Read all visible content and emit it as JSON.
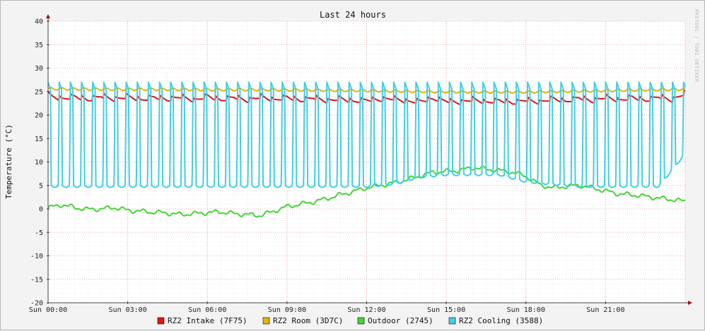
{
  "chart_data": {
    "type": "line",
    "title": "Last 24 hours",
    "ylabel": "Temperature (°C)",
    "watermark": "RRDTOOL / TOBI OETIKER",
    "x_range_hours": [
      0,
      24
    ],
    "ylim": [
      -20,
      40
    ],
    "y_ticks": [
      40,
      35,
      30,
      25,
      20,
      15,
      10,
      5,
      0,
      -5,
      -10,
      -15,
      -20
    ],
    "x_ticks": [
      {
        "hour": 0,
        "label": "Sun 00:00"
      },
      {
        "hour": 3,
        "label": "Sun 03:00"
      },
      {
        "hour": 6,
        "label": "Sun 06:00"
      },
      {
        "hour": 9,
        "label": "Sun 09:00"
      },
      {
        "hour": 12,
        "label": "Sun 12:00"
      },
      {
        "hour": 15,
        "label": "Sun 15:00"
      },
      {
        "hour": 18,
        "label": "Sun 18:00"
      },
      {
        "hour": 21,
        "label": "Sun 21:00"
      }
    ],
    "grid": true,
    "legend_position": "bottom",
    "series": [
      {
        "name": "RZ2 Intake (7F75)",
        "color": "#e8120f",
        "x": [
          0,
          0.5,
          1,
          1.5,
          2,
          2.5,
          3,
          3.5,
          4,
          4.5,
          5,
          5.5,
          6,
          6.5,
          7,
          7.5,
          8,
          8.5,
          9,
          9.5,
          10,
          10.5,
          11,
          11.5,
          12,
          12.5,
          13,
          13.5,
          14,
          14.5,
          15,
          15.5,
          16,
          16.5,
          17,
          17.5,
          18,
          18.5,
          19,
          19.5,
          20,
          20.5,
          21,
          21.5,
          22,
          22.5,
          23,
          23.5,
          24
        ],
        "y": [
          24.5,
          23.5,
          24.2,
          23.3,
          24.3,
          23.4,
          24.2,
          23.3,
          24.1,
          23.4,
          24.2,
          23.2,
          24.3,
          23.3,
          24.1,
          23.2,
          24.2,
          23.3,
          24.1,
          23.2,
          24.0,
          23.1,
          23.8,
          23.0,
          23.5,
          23.4,
          23.8,
          23.0,
          23.2,
          23.6,
          23.3,
          22.8,
          23.6,
          22.8,
          23.4,
          22.7,
          23.5,
          22.8,
          23.8,
          23.0,
          24.0,
          23.1,
          24.1,
          23.2,
          24.1,
          23.2,
          24.2,
          23.3,
          25.0
        ]
      },
      {
        "name": "RZ2 Room (3D7C)",
        "color": "#e8b20c",
        "x": [
          0,
          2,
          4,
          6,
          8,
          10,
          12,
          14,
          16,
          18,
          20,
          22,
          24
        ],
        "y": [
          25.6,
          25.5,
          25.5,
          25.4,
          25.4,
          25.3,
          25.2,
          25.0,
          24.9,
          24.9,
          25.1,
          25.3,
          25.5
        ]
      },
      {
        "name": "Outdoor (2745)",
        "color": "#43d632",
        "x": [
          0,
          0.5,
          1,
          1.5,
          2,
          2.5,
          3,
          3.5,
          4,
          4.5,
          5,
          5.5,
          6,
          6.5,
          7,
          7.5,
          8,
          8.5,
          9,
          9.5,
          10,
          10.5,
          11,
          11.5,
          12,
          12.5,
          13,
          13.5,
          14,
          14.5,
          15,
          15.5,
          16,
          16.5,
          17,
          17.5,
          18,
          18.5,
          19,
          19.5,
          20,
          20.5,
          21,
          21.5,
          22,
          22.5,
          23,
          23.5,
          24
        ],
        "y": [
          0.2,
          0.9,
          0.3,
          -0.1,
          0.0,
          0.3,
          -0.3,
          -0.5,
          -0.7,
          -0.9,
          -1.2,
          -1.0,
          -0.8,
          -0.6,
          -1.0,
          -1.2,
          -1.4,
          -0.5,
          0.5,
          1.0,
          1.5,
          2.2,
          3.0,
          3.7,
          4.5,
          5.0,
          5.5,
          6.2,
          7.0,
          7.8,
          8.0,
          8.2,
          8.8,
          8.5,
          8.2,
          7.8,
          7.0,
          5.2,
          4.5,
          4.8,
          5.0,
          4.5,
          3.8,
          3.2,
          3.0,
          2.7,
          2.3,
          2.0,
          1.6
        ]
      },
      {
        "name": "RZ2 Cooling (3588)",
        "color": "#40cfe6",
        "cycle": {
          "high": 27.0,
          "low": 5.0,
          "period_hours": 0.42,
          "ramp_low_to": 4.8
        },
        "x": [
          0,
          1,
          2,
          3,
          4,
          5,
          6,
          7,
          8,
          9,
          10,
          11,
          12,
          13,
          14,
          15,
          16,
          17,
          18,
          19,
          20,
          21,
          22,
          23,
          24
        ],
        "y_low": [
          5.0,
          5.0,
          5.0,
          5.0,
          5.0,
          5.0,
          5.0,
          5.0,
          5.0,
          5.0,
          5.0,
          5.0,
          5.0,
          5.5,
          7.0,
          7.5,
          7.5,
          7.5,
          6.0,
          5.5,
          5.0,
          5.0,
          5.0,
          5.0,
          12.0
        ]
      }
    ]
  }
}
